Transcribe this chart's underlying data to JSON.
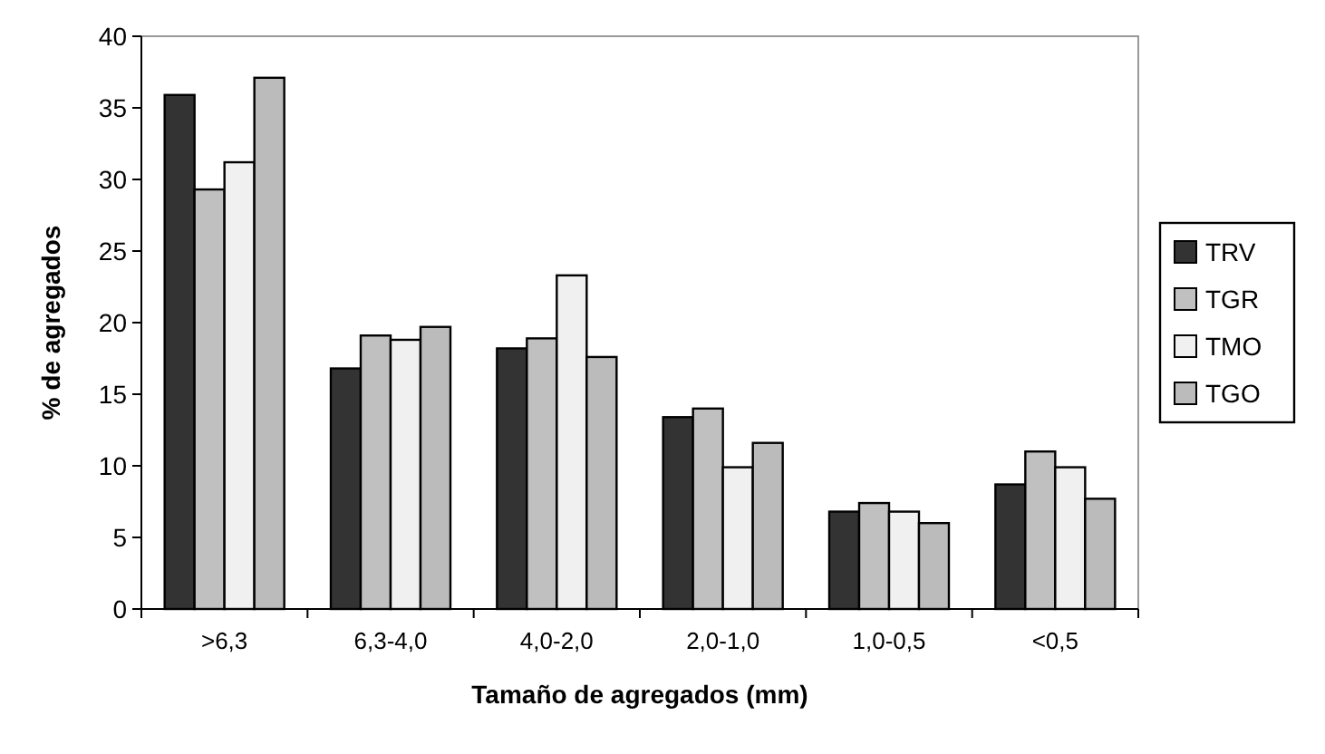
{
  "chart_data": {
    "type": "bar",
    "xlabel": "Tamaño de agregados (mm)",
    "ylabel": "% de agregados",
    "categories": [
      ">6,3",
      "6,3-4,0",
      "4,0-2,0",
      "2,0-1,0",
      "1,0-0,5",
      "<0,5"
    ],
    "series": [
      {
        "name": "TRV",
        "color": "#333333",
        "values": [
          35.9,
          16.8,
          18.2,
          13.4,
          6.8,
          8.7
        ]
      },
      {
        "name": "TGR",
        "color": "#c0c0c0",
        "values": [
          29.3,
          19.1,
          18.9,
          14.0,
          7.4,
          11.0
        ]
      },
      {
        "name": "TMO",
        "color": "#f0f0f0",
        "values": [
          31.2,
          18.8,
          23.3,
          9.9,
          6.8,
          9.9
        ]
      },
      {
        "name": "TGO",
        "color": "#bbbbbb",
        "values": [
          37.1,
          19.7,
          17.6,
          11.6,
          6.0,
          7.7
        ]
      }
    ],
    "ylim": [
      0,
      40
    ],
    "yticks": [
      0,
      5,
      10,
      15,
      20,
      25,
      30,
      35,
      40
    ],
    "grid": false,
    "legend": "right"
  }
}
